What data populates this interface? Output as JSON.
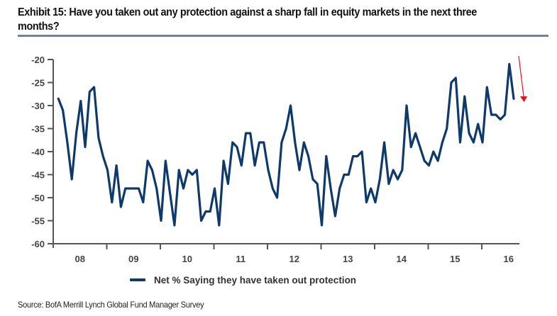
{
  "exhibit": {
    "title": "Exhibit 15: Have you taken out any protection against a sharp fall in equity markets in the next three months?",
    "source": "Source: BofA Merrill Lynch Global Fund Manager Survey"
  },
  "colors": {
    "series": "#0e3a6b",
    "axis": "#555555",
    "title_rule": "#6b84a6",
    "annotation_arrow": "#e8141b"
  },
  "chart_data": {
    "type": "line",
    "title": "Have you taken out any protection against a sharp fall in equity markets in the next three months?",
    "xlabel": "",
    "ylabel": "",
    "ylim": [
      -60,
      -20
    ],
    "yticks": [
      -20,
      -25,
      -30,
      -35,
      -40,
      -45,
      -50,
      -55,
      -60
    ],
    "ytick_labels": [
      "-20",
      "-25",
      "-30",
      "-35",
      "-40",
      "-45",
      "-50",
      "-55",
      "-60"
    ],
    "xlim_years": [
      2008,
      2017
    ],
    "xtick_labels": [
      "08",
      "09",
      "10",
      "11",
      "12",
      "13",
      "14",
      "15",
      "16"
    ],
    "grid": false,
    "legend": {
      "position": "bottom-center",
      "entries": [
        "Net % Saying they have taken out protection"
      ]
    },
    "annotations": [
      {
        "type": "arrow",
        "direction": "down",
        "near": "latest value",
        "color": "#e8141b"
      }
    ],
    "x_start_month_index": 1,
    "series": [
      {
        "name": "Net % Saying they have taken out protection",
        "frequency": "monthly",
        "values": [
          -28.5,
          -31,
          -38,
          -46,
          -36,
          -29,
          -39,
          -27,
          -26,
          -37,
          -41,
          -44,
          -51,
          -43,
          -52,
          -48,
          -48,
          -48,
          -48,
          -51,
          -42,
          -44,
          -48,
          -55,
          -42,
          -49,
          -56,
          -44,
          -48,
          -44,
          -45,
          -44,
          -55,
          -53,
          -53,
          -48,
          -56,
          -42,
          -47,
          -38,
          -39,
          -43,
          -36,
          -36,
          -43,
          -38,
          -38,
          -44,
          -48,
          -50,
          -38,
          -35,
          -30,
          -38,
          -44,
          -38,
          -41,
          -46,
          -47,
          -56,
          -41,
          -48,
          -54,
          -48,
          -45,
          -45,
          -41,
          -41,
          -40,
          -51,
          -48,
          -51,
          -46,
          -38,
          -47,
          -44,
          -46,
          -44,
          -30,
          -39,
          -36,
          -39,
          -42,
          -43,
          -40,
          -42,
          -38,
          -35,
          -25,
          -24,
          -38,
          -28,
          -36,
          -38,
          -34,
          -38,
          -26,
          -32,
          -32,
          -33,
          -32,
          -21,
          -28.5
        ]
      }
    ]
  }
}
